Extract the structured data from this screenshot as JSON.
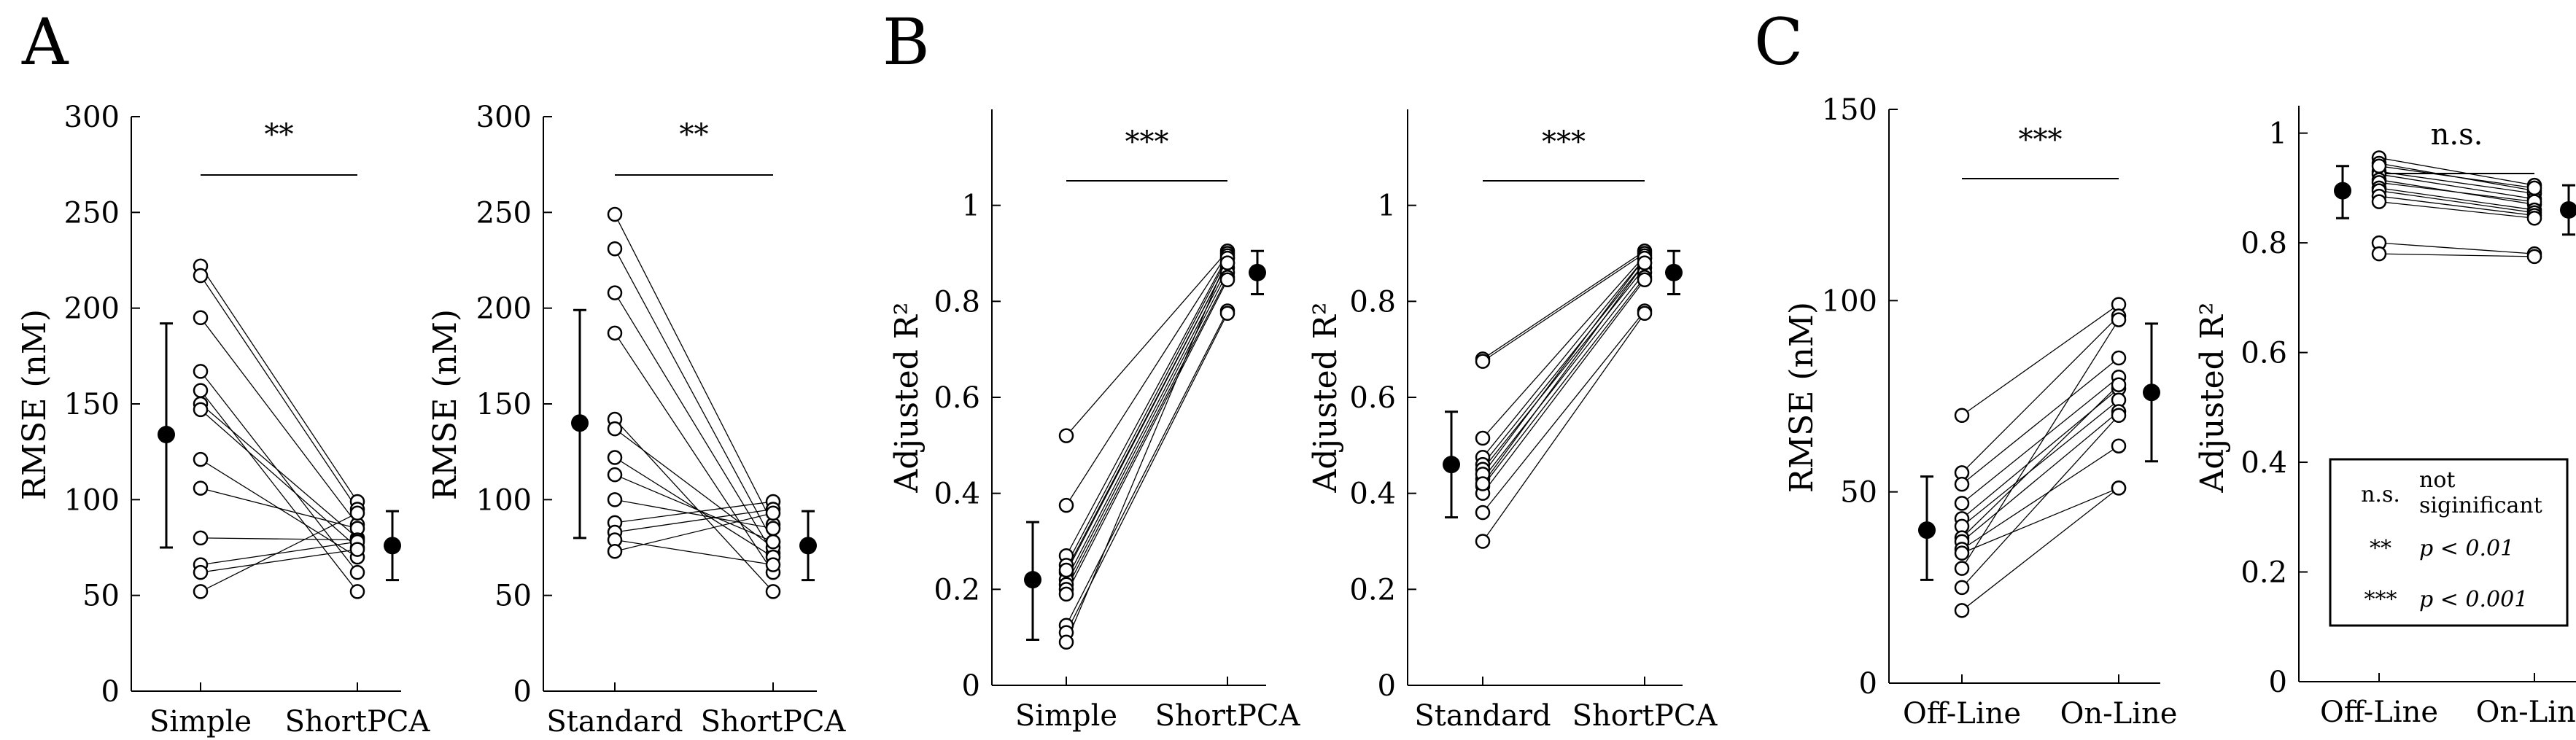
{
  "panel_letters": [
    "A",
    "B",
    "C"
  ],
  "legend": {
    "entries": [
      {
        "symbol": "n.s.",
        "text_line1": "not",
        "text_line2": "siginificant"
      },
      {
        "symbol": "**",
        "text_line1": "p < 0.01",
        "text_line2": ""
      },
      {
        "symbol": "***",
        "text_line1": "p < 0.001",
        "text_line2": ""
      }
    ]
  },
  "chart_data": [
    {
      "type": "scatter",
      "panel": "A",
      "categories": [
        "Simple",
        "ShortPCA"
      ],
      "ylabel": "RMSE (nM)",
      "ylim": [
        0,
        300
      ],
      "yticks": [
        0,
        50,
        100,
        150,
        200,
        250,
        300
      ],
      "ytick_labels": [
        "0",
        "50",
        "100",
        "150",
        "200",
        "250",
        "300"
      ],
      "significance": "**",
      "pairs": [
        [
          222,
          99
        ],
        [
          217,
          95
        ],
        [
          195,
          87
        ],
        [
          167,
          62
        ],
        [
          157,
          52
        ],
        [
          150,
          80
        ],
        [
          147,
          75
        ],
        [
          121,
          70
        ],
        [
          106,
          85
        ],
        [
          80,
          79
        ],
        [
          66,
          78
        ],
        [
          62,
          74
        ],
        [
          52,
          93
        ]
      ],
      "mean_left": {
        "mean": 134,
        "lower": 75,
        "upper": 192
      },
      "mean_right": {
        "mean": 76,
        "lower": 58,
        "upper": 94
      }
    },
    {
      "type": "scatter",
      "panel": "A",
      "categories": [
        "Standard",
        "ShortPCA"
      ],
      "ylabel": "RMSE (nM)",
      "ylim": [
        0,
        300
      ],
      "yticks": [
        0,
        50,
        100,
        150,
        200,
        250,
        300
      ],
      "ytick_labels": [
        "0",
        "50",
        "100",
        "150",
        "200",
        "250",
        "300"
      ],
      "significance": "**",
      "pairs": [
        [
          249,
          87
        ],
        [
          231,
          78
        ],
        [
          208,
          72
        ],
        [
          187,
          62
        ],
        [
          142,
          52
        ],
        [
          137,
          75
        ],
        [
          122,
          70
        ],
        [
          113,
          78
        ],
        [
          100,
          85
        ],
        [
          88,
          99
        ],
        [
          83,
          95
        ],
        [
          79,
          66
        ],
        [
          73,
          93
        ]
      ],
      "mean_left": {
        "mean": 140,
        "lower": 80,
        "upper": 199
      },
      "mean_right": {
        "mean": 76,
        "lower": 58,
        "upper": 94
      }
    },
    {
      "type": "scatter",
      "panel": "B",
      "categories": [
        "Simple",
        "ShortPCA"
      ],
      "ylabel": "Adjusted R²",
      "ylim": [
        0,
        1.2
      ],
      "yticks": [
        0,
        0.2,
        0.4,
        0.6,
        0.8,
        1
      ],
      "ytick_labels": [
        "0",
        "0.2",
        "0.4",
        "0.6",
        "0.8",
        "1"
      ],
      "significance": "***",
      "pairs": [
        [
          0.52,
          0.905
        ],
        [
          0.375,
          0.9
        ],
        [
          0.27,
          0.895
        ],
        [
          0.25,
          0.89
        ],
        [
          0.235,
          0.88
        ],
        [
          0.22,
          0.87
        ],
        [
          0.21,
          0.86
        ],
        [
          0.2,
          0.85
        ],
        [
          0.19,
          0.845
        ],
        [
          0.125,
          0.78
        ],
        [
          0.11,
          0.775
        ],
        [
          0.09,
          0.89
        ],
        [
          0.24,
          0.88
        ]
      ],
      "mean_left": {
        "mean": 0.22,
        "lower": 0.095,
        "upper": 0.34
      },
      "mean_right": {
        "mean": 0.86,
        "lower": 0.815,
        "upper": 0.905
      }
    },
    {
      "type": "scatter",
      "panel": "B",
      "categories": [
        "Standard",
        "ShortPCA"
      ],
      "ylabel": "Adjusted R²",
      "ylim": [
        0,
        1.2
      ],
      "yticks": [
        0,
        0.2,
        0.4,
        0.6,
        0.8,
        1
      ],
      "ytick_labels": [
        "0",
        "0.2",
        "0.4",
        "0.6",
        "0.8",
        "1"
      ],
      "significance": "***",
      "pairs": [
        [
          0.68,
          0.905
        ],
        [
          0.675,
          0.9
        ],
        [
          0.515,
          0.895
        ],
        [
          0.475,
          0.89
        ],
        [
          0.46,
          0.88
        ],
        [
          0.45,
          0.87
        ],
        [
          0.43,
          0.86
        ],
        [
          0.415,
          0.85
        ],
        [
          0.4,
          0.845
        ],
        [
          0.36,
          0.78
        ],
        [
          0.3,
          0.775
        ],
        [
          0.44,
          0.89
        ],
        [
          0.42,
          0.88
        ]
      ],
      "mean_left": {
        "mean": 0.46,
        "lower": 0.35,
        "upper": 0.57
      },
      "mean_right": {
        "mean": 0.86,
        "lower": 0.815,
        "upper": 0.905
      }
    },
    {
      "type": "scatter",
      "panel": "C",
      "categories": [
        "Off-Line",
        "On-Line"
      ],
      "ylabel": "RMSE (nM)",
      "ylim": [
        0,
        150
      ],
      "yticks": [
        0,
        50,
        100,
        150
      ],
      "ytick_labels": [
        "0",
        "50",
        "100",
        "150"
      ],
      "significance": "***",
      "pairs": [
        [
          70,
          99
        ],
        [
          55,
          96
        ],
        [
          52,
          85
        ],
        [
          47,
          80
        ],
        [
          43,
          77
        ],
        [
          41,
          74
        ],
        [
          38,
          78
        ],
        [
          37,
          71
        ],
        [
          35,
          62
        ],
        [
          34,
          51
        ],
        [
          30,
          95
        ],
        [
          25,
          70
        ],
        [
          19,
          51
        ]
      ],
      "mean_left": {
        "mean": 40,
        "lower": 27,
        "upper": 54
      },
      "mean_right": {
        "mean": 76,
        "lower": 58,
        "upper": 94
      }
    },
    {
      "type": "scatter",
      "panel": "C",
      "categories": [
        "Off-Line",
        "On-Line"
      ],
      "ylabel": "Adjusted R²",
      "ylim": [
        0,
        1.05
      ],
      "yticks": [
        0,
        0.2,
        0.4,
        0.6,
        0.8,
        1
      ],
      "ytick_labels": [
        "0",
        "0.2",
        "0.4",
        "0.6",
        "0.8",
        "1"
      ],
      "significance": "n.s.",
      "pairs": [
        [
          0.955,
          0.905
        ],
        [
          0.945,
          0.895
        ],
        [
          0.93,
          0.89
        ],
        [
          0.925,
          0.88
        ],
        [
          0.915,
          0.87
        ],
        [
          0.91,
          0.875
        ],
        [
          0.9,
          0.86
        ],
        [
          0.895,
          0.855
        ],
        [
          0.885,
          0.85
        ],
        [
          0.875,
          0.845
        ],
        [
          0.8,
          0.78
        ],
        [
          0.78,
          0.775
        ],
        [
          0.94,
          0.9
        ]
      ],
      "mean_left": {
        "mean": 0.895,
        "lower": 0.845,
        "upper": 0.94
      },
      "mean_right": {
        "mean": 0.86,
        "lower": 0.815,
        "upper": 0.905
      }
    }
  ]
}
